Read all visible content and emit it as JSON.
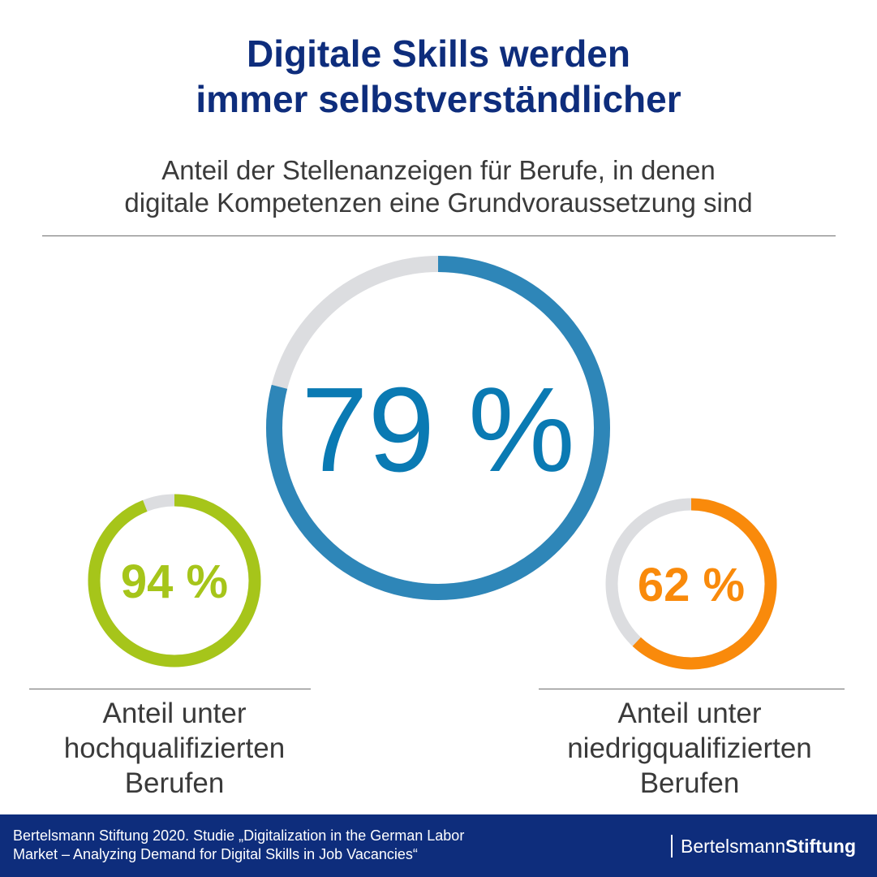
{
  "title_line1": "Digitale Skills werden",
  "title_line2": "immer selbstverständlicher",
  "subtitle_line1": "Anteil der Stellenanzeigen für Berufe, in denen",
  "subtitle_line2": "digitale Kompetenzen eine Grundvoraussetzung sind",
  "chart_data": [
    {
      "type": "pie",
      "value": 79,
      "unit": "%",
      "label": "79 %",
      "color": "#2e86b8",
      "text_color": "#0a7ab3",
      "track_color": "#dcdde0",
      "caption": []
    },
    {
      "type": "pie",
      "value": 94,
      "unit": "%",
      "label": "94 %",
      "color": "#a6c51a",
      "text_color": "#a6c51a",
      "track_color": "#dcdde0",
      "caption": [
        "Anteil unter",
        "hochqualifizierten",
        "Berufen"
      ]
    },
    {
      "type": "pie",
      "value": 62,
      "unit": "%",
      "label": "62 %",
      "color": "#f98a0b",
      "text_color": "#f98a0b",
      "track_color": "#dcdde0",
      "caption": [
        "Anteil unter",
        "niedrigqualifizierten",
        "Berufen"
      ]
    }
  ],
  "footer": {
    "source_line1": "Bertelsmann Stiftung 2020. Studie „Digitalization in the German Labor",
    "source_line2": "Market – Analyzing Demand for Digital Skills in Job Vacancies“",
    "brand_regular": "Bertelsmann",
    "brand_bold": "Stiftung",
    "color": "#0e2d7c"
  }
}
